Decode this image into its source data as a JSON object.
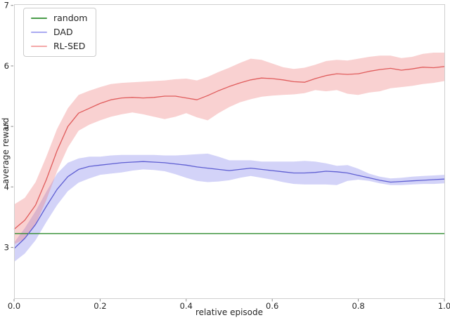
{
  "chart_data": {
    "type": "line",
    "title": "",
    "xlabel": "relative episode",
    "ylabel": "average reward",
    "xlim": [
      0,
      1
    ],
    "ylim": [
      2.16,
      7.02
    ],
    "grid": false,
    "legend": {
      "position": "upper left"
    },
    "x_ticks": {
      "values": [
        0,
        0.2,
        0.4,
        0.6,
        0.8,
        1.0
      ],
      "labels": [
        "0.0",
        "0.2",
        "0.4",
        "0.6",
        "0.8",
        "1.0"
      ]
    },
    "y_ticks": {
      "values": [
        3,
        4,
        5,
        6,
        7
      ],
      "labels": [
        "3",
        "4",
        "5",
        "6",
        "7"
      ]
    },
    "x": [
      0,
      0.025,
      0.05,
      0.075,
      0.1,
      0.125,
      0.15,
      0.175,
      0.2,
      0.225,
      0.25,
      0.275,
      0.3,
      0.325,
      0.35,
      0.375,
      0.4,
      0.425,
      0.45,
      0.475,
      0.5,
      0.525,
      0.55,
      0.575,
      0.6,
      0.625,
      0.65,
      0.675,
      0.7,
      0.725,
      0.75,
      0.775,
      0.8,
      0.825,
      0.85,
      0.875,
      0.9,
      0.925,
      0.95,
      0.975,
      1.0
    ],
    "series": [
      {
        "name": "random",
        "kind": "hline",
        "value": 3.23,
        "line_color": "#2e8b2e",
        "legend_color": "#4a9c4a"
      },
      {
        "name": "DAD",
        "kind": "band-line",
        "line_color": "#5e5ed2",
        "band_color": "#7777e8",
        "band_opacity": 0.32,
        "legend_color": "#aaaaf2",
        "center": [
          2.98,
          3.15,
          3.38,
          3.68,
          3.96,
          4.17,
          4.29,
          4.34,
          4.36,
          4.38,
          4.4,
          4.41,
          4.42,
          4.41,
          4.4,
          4.38,
          4.36,
          4.33,
          4.31,
          4.29,
          4.27,
          4.29,
          4.31,
          4.29,
          4.27,
          4.25,
          4.23,
          4.23,
          4.24,
          4.26,
          4.25,
          4.23,
          4.19,
          4.15,
          4.11,
          4.08,
          4.09,
          4.1,
          4.11,
          4.12,
          4.13
        ],
        "lo": [
          2.76,
          2.9,
          3.12,
          3.42,
          3.7,
          3.93,
          4.07,
          4.14,
          4.2,
          4.22,
          4.24,
          4.27,
          4.29,
          4.28,
          4.26,
          4.21,
          4.15,
          4.1,
          4.08,
          4.09,
          4.11,
          4.15,
          4.18,
          4.15,
          4.12,
          4.08,
          4.05,
          4.04,
          4.04,
          4.04,
          4.03,
          4.1,
          4.12,
          4.1,
          4.06,
          4.03,
          4.03,
          4.04,
          4.05,
          4.05,
          4.06
        ],
        "hi": [
          3.08,
          3.32,
          3.6,
          3.92,
          4.22,
          4.4,
          4.47,
          4.5,
          4.5,
          4.52,
          4.53,
          4.53,
          4.53,
          4.53,
          4.52,
          4.52,
          4.53,
          4.54,
          4.55,
          4.5,
          4.44,
          4.44,
          4.44,
          4.42,
          4.42,
          4.42,
          4.42,
          4.43,
          4.42,
          4.39,
          4.35,
          4.36,
          4.3,
          4.22,
          4.17,
          4.14,
          4.15,
          4.17,
          4.18,
          4.19,
          4.2
        ]
      },
      {
        "name": "RL-SED",
        "kind": "band-line",
        "line_color": "#e05c5c",
        "band_color": "#ee7878",
        "band_opacity": 0.34,
        "legend_color": "#f4a8a8",
        "center": [
          3.3,
          3.45,
          3.7,
          4.12,
          4.6,
          5.0,
          5.22,
          5.3,
          5.38,
          5.44,
          5.47,
          5.48,
          5.47,
          5.48,
          5.5,
          5.5,
          5.47,
          5.44,
          5.51,
          5.59,
          5.66,
          5.72,
          5.77,
          5.8,
          5.79,
          5.77,
          5.74,
          5.73,
          5.79,
          5.84,
          5.87,
          5.86,
          5.87,
          5.91,
          5.94,
          5.96,
          5.93,
          5.95,
          5.98,
          5.97,
          5.99
        ],
        "lo": [
          3.05,
          3.14,
          3.38,
          3.78,
          4.26,
          4.65,
          4.93,
          5.03,
          5.1,
          5.16,
          5.2,
          5.23,
          5.2,
          5.16,
          5.12,
          5.16,
          5.22,
          5.15,
          5.1,
          5.22,
          5.32,
          5.4,
          5.45,
          5.49,
          5.51,
          5.52,
          5.53,
          5.55,
          5.6,
          5.58,
          5.6,
          5.54,
          5.52,
          5.56,
          5.58,
          5.63,
          5.65,
          5.67,
          5.7,
          5.72,
          5.75
        ],
        "hi": [
          3.71,
          3.82,
          4.08,
          4.5,
          4.96,
          5.3,
          5.52,
          5.59,
          5.65,
          5.7,
          5.72,
          5.73,
          5.74,
          5.75,
          5.76,
          5.78,
          5.79,
          5.76,
          5.82,
          5.9,
          5.97,
          6.05,
          6.12,
          6.1,
          6.04,
          5.98,
          5.95,
          5.97,
          6.02,
          6.08,
          6.1,
          6.09,
          6.12,
          6.15,
          6.17,
          6.17,
          6.13,
          6.15,
          6.2,
          6.22,
          6.22
        ]
      }
    ],
    "style": {
      "background": "#ffffff",
      "spine_color": "#cfcfcf",
      "tick_color": "#8a8a8a",
      "text_color": "#262626"
    }
  }
}
